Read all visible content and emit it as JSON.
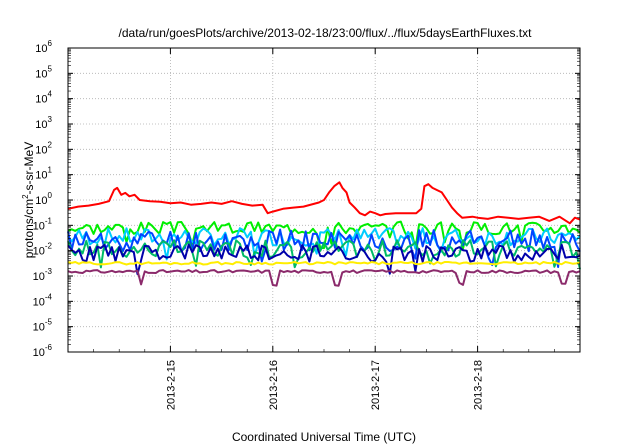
{
  "chart_data": {
    "type": "line",
    "title": "/data/run/goesPlots/archive/2013-02-18/23:00/flux/../flux/5daysEarthFluxes.txt",
    "xlabel": "Coordinated Universal Time (UTC)",
    "ylabel": "protons/cm2-s-sr-MeV",
    "yscale": "log",
    "ylim": [
      1e-06,
      1000000.0
    ],
    "yticks": [
      {
        "base": "10",
        "exp": "-6"
      },
      {
        "base": "10",
        "exp": "-5"
      },
      {
        "base": "10",
        "exp": "-4"
      },
      {
        "base": "10",
        "exp": "-3"
      },
      {
        "base": "10",
        "exp": "-2"
      },
      {
        "base": "10",
        "exp": "-1"
      },
      {
        "base": "10",
        "exp": "0"
      },
      {
        "base": "10",
        "exp": "1"
      },
      {
        "base": "10",
        "exp": "2"
      },
      {
        "base": "10",
        "exp": "3"
      },
      {
        "base": "10",
        "exp": "4"
      },
      {
        "base": "10",
        "exp": "5"
      },
      {
        "base": "10",
        "exp": "6"
      }
    ],
    "xlim": [
      "2013-02-14 00:00",
      "2013-02-19 00:00"
    ],
    "xticks": [
      "2013-2-15",
      "2013-2-16",
      "2013-2-17",
      "2013-2-18"
    ],
    "grid": true,
    "series": [
      {
        "color": "#ff0000",
        "points": [
          [
            0.0,
            0.45
          ],
          [
            0.1,
            0.55
          ],
          [
            0.2,
            0.6
          ],
          [
            0.3,
            0.7
          ],
          [
            0.4,
            0.9
          ],
          [
            0.45,
            2.5
          ],
          [
            0.48,
            3.0
          ],
          [
            0.52,
            1.6
          ],
          [
            0.56,
            1.9
          ],
          [
            0.6,
            1.4
          ],
          [
            0.65,
            1.6
          ],
          [
            0.7,
            1.0
          ],
          [
            0.8,
            0.9
          ],
          [
            0.9,
            0.85
          ],
          [
            1.0,
            0.75
          ],
          [
            1.1,
            0.8
          ],
          [
            1.2,
            0.65
          ],
          [
            1.3,
            0.7
          ],
          [
            1.4,
            0.8
          ],
          [
            1.5,
            0.7
          ],
          [
            1.6,
            0.9
          ],
          [
            1.7,
            0.7
          ],
          [
            1.8,
            0.6
          ],
          [
            1.9,
            0.65
          ],
          [
            1.95,
            0.3
          ],
          [
            2.0,
            0.35
          ],
          [
            2.1,
            0.45
          ],
          [
            2.2,
            0.5
          ],
          [
            2.3,
            0.55
          ],
          [
            2.4,
            0.7
          ],
          [
            2.45,
            0.8
          ],
          [
            2.5,
            1.0
          ],
          [
            2.55,
            2.0
          ],
          [
            2.6,
            3.5
          ],
          [
            2.65,
            5.0
          ],
          [
            2.68,
            3.0
          ],
          [
            2.72,
            2.0
          ],
          [
            2.75,
            0.8
          ],
          [
            2.8,
            0.5
          ],
          [
            2.85,
            0.3
          ],
          [
            2.9,
            0.25
          ],
          [
            2.95,
            0.35
          ],
          [
            3.0,
            0.3
          ],
          [
            3.05,
            0.25
          ],
          [
            3.1,
            0.28
          ],
          [
            3.2,
            0.3
          ],
          [
            3.3,
            0.3
          ],
          [
            3.4,
            0.3
          ],
          [
            3.45,
            0.45
          ],
          [
            3.48,
            3.5
          ],
          [
            3.52,
            4.2
          ],
          [
            3.56,
            3.0
          ],
          [
            3.6,
            2.5
          ],
          [
            3.65,
            2.0
          ],
          [
            3.7,
            1.0
          ],
          [
            3.75,
            0.5
          ],
          [
            3.8,
            0.3
          ],
          [
            3.85,
            0.2
          ],
          [
            3.95,
            0.22
          ],
          [
            4.0,
            0.2
          ],
          [
            4.1,
            0.18
          ],
          [
            4.2,
            0.22
          ],
          [
            4.3,
            0.2
          ],
          [
            4.4,
            0.18
          ],
          [
            4.5,
            0.2
          ],
          [
            4.6,
            0.22
          ],
          [
            4.7,
            0.15
          ],
          [
            4.8,
            0.22
          ],
          [
            4.9,
            0.12
          ],
          [
            4.95,
            0.2
          ],
          [
            5.0,
            0.17
          ]
        ]
      },
      {
        "color": "#00ee00",
        "base": 0.08,
        "amp": 0.25,
        "seed": 3
      },
      {
        "color": "#00ccff",
        "base": 0.035,
        "amp": 0.35,
        "seed": 7
      },
      {
        "color": "#0044ff",
        "base": 0.025,
        "amp": 0.45,
        "seed": 11
      },
      {
        "color": "#00bb66",
        "base": 0.012,
        "amp": 0.35,
        "seed": 17
      },
      {
        "color": "#0000aa",
        "base": 0.008,
        "amp": 0.35,
        "seed": 23
      },
      {
        "color": "#ffee00",
        "base": 0.0032,
        "amp": 0.05,
        "seed": 29
      },
      {
        "color": "#8b2a6b",
        "base": 0.0015,
        "amp": 0.06,
        "seed": 31,
        "dips": [
          0.72,
          2.03,
          2.62,
          3.83,
          4.85
        ]
      }
    ]
  }
}
